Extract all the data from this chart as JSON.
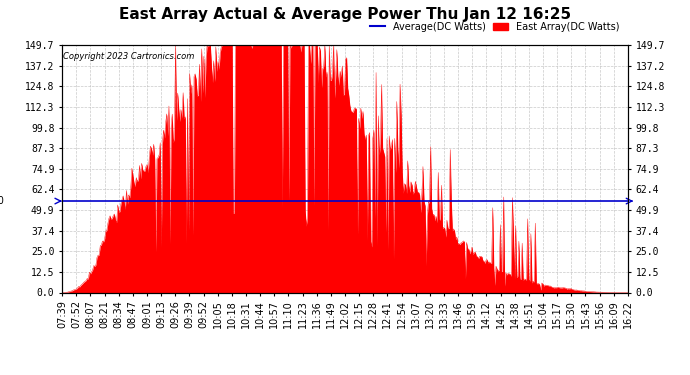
{
  "title": "East Array Actual & Average Power Thu Jan 12 16:25",
  "copyright": "Copyright 2023 Cartronics.com",
  "legend_average": "Average(DC Watts)",
  "legend_east": "East Array(DC Watts)",
  "average_value": 55.31,
  "y_ticks": [
    0.0,
    12.5,
    25.0,
    37.4,
    49.9,
    62.4,
    74.9,
    87.3,
    99.8,
    112.3,
    124.8,
    137.2,
    149.7
  ],
  "ymax": 149.7,
  "ymin": 0.0,
  "background_color": "#ffffff",
  "plot_bg_color": "#ffffff",
  "grid_color": "#bbbbbb",
  "fill_color": "#ff0000",
  "line_color": "#ff0000",
  "avg_line_color": "#0000cc",
  "title_fontsize": 11,
  "tick_fontsize": 7,
  "time_labels": [
    "07:39",
    "07:52",
    "08:07",
    "08:21",
    "08:34",
    "08:47",
    "09:01",
    "09:13",
    "09:26",
    "09:39",
    "09:52",
    "10:05",
    "10:18",
    "10:31",
    "10:44",
    "10:57",
    "11:10",
    "11:23",
    "11:36",
    "11:49",
    "12:02",
    "12:15",
    "12:28",
    "12:41",
    "12:54",
    "13:07",
    "13:20",
    "13:33",
    "13:46",
    "13:59",
    "14:12",
    "14:25",
    "14:38",
    "14:51",
    "15:04",
    "15:17",
    "15:30",
    "15:43",
    "15:56",
    "16:09",
    "16:22"
  ],
  "n_points": 520
}
